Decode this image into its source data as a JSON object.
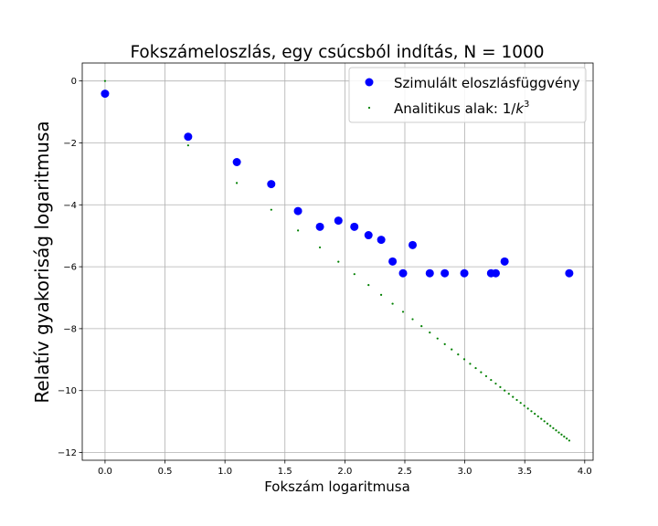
{
  "chart_data": {
    "type": "scatter",
    "title": "Fokszámeloszlás, egy csúcsból indítás, N = 1000",
    "xlabel": "Fokszám logaritmusa",
    "ylabel": "Relatív gyakoriság logaritmusa",
    "xlim": [
      -0.19,
      4.07
    ],
    "ylim": [
      -12.25,
      0.58
    ],
    "xticks": [
      0.0,
      0.5,
      1.0,
      1.5,
      2.0,
      2.5,
      3.0,
      3.5,
      4.0
    ],
    "xtick_labels": [
      "0.0",
      "0.5",
      "1.0",
      "1.5",
      "2.0",
      "2.5",
      "3.0",
      "3.5",
      "4.0"
    ],
    "yticks": [
      0,
      -2,
      -4,
      -6,
      -8,
      -10,
      -12
    ],
    "ytick_labels": [
      "0",
      "−2",
      "−4",
      "−6",
      "−8",
      "−10",
      "−12"
    ],
    "grid": true,
    "legend_position": "top-right",
    "series": [
      {
        "name": "Szimulált eloszlásfüggvény",
        "marker": "large-dot",
        "color": "#0000ff",
        "points": [
          [
            0.0,
            -0.41
          ],
          [
            0.693,
            -1.8
          ],
          [
            1.099,
            -2.62
          ],
          [
            1.386,
            -3.33
          ],
          [
            1.609,
            -4.2
          ],
          [
            1.792,
            -4.71
          ],
          [
            1.946,
            -4.51
          ],
          [
            2.079,
            -4.71
          ],
          [
            2.197,
            -4.98
          ],
          [
            2.303,
            -5.13
          ],
          [
            2.398,
            -5.83
          ],
          [
            2.485,
            -6.21
          ],
          [
            2.565,
            -5.3
          ],
          [
            2.708,
            -6.21
          ],
          [
            2.833,
            -6.21
          ],
          [
            2.996,
            -6.21
          ],
          [
            3.219,
            -6.21
          ],
          [
            3.258,
            -6.21
          ],
          [
            3.332,
            -5.83
          ],
          [
            3.871,
            -6.21
          ]
        ]
      },
      {
        "name": "Analitikus alak: 1/k³",
        "marker": "small-dot",
        "color": "#008000",
        "formula": "y = -3·x, x = ln k, k = 1 … 48",
        "k_min": 1,
        "k_max": 48
      }
    ]
  },
  "legend": {
    "entry1": "Szimulált eloszlásfüggvény",
    "entry2_prefix": "Analitikus alak: 1/",
    "entry2_var": "k",
    "entry2_exp": "3"
  }
}
